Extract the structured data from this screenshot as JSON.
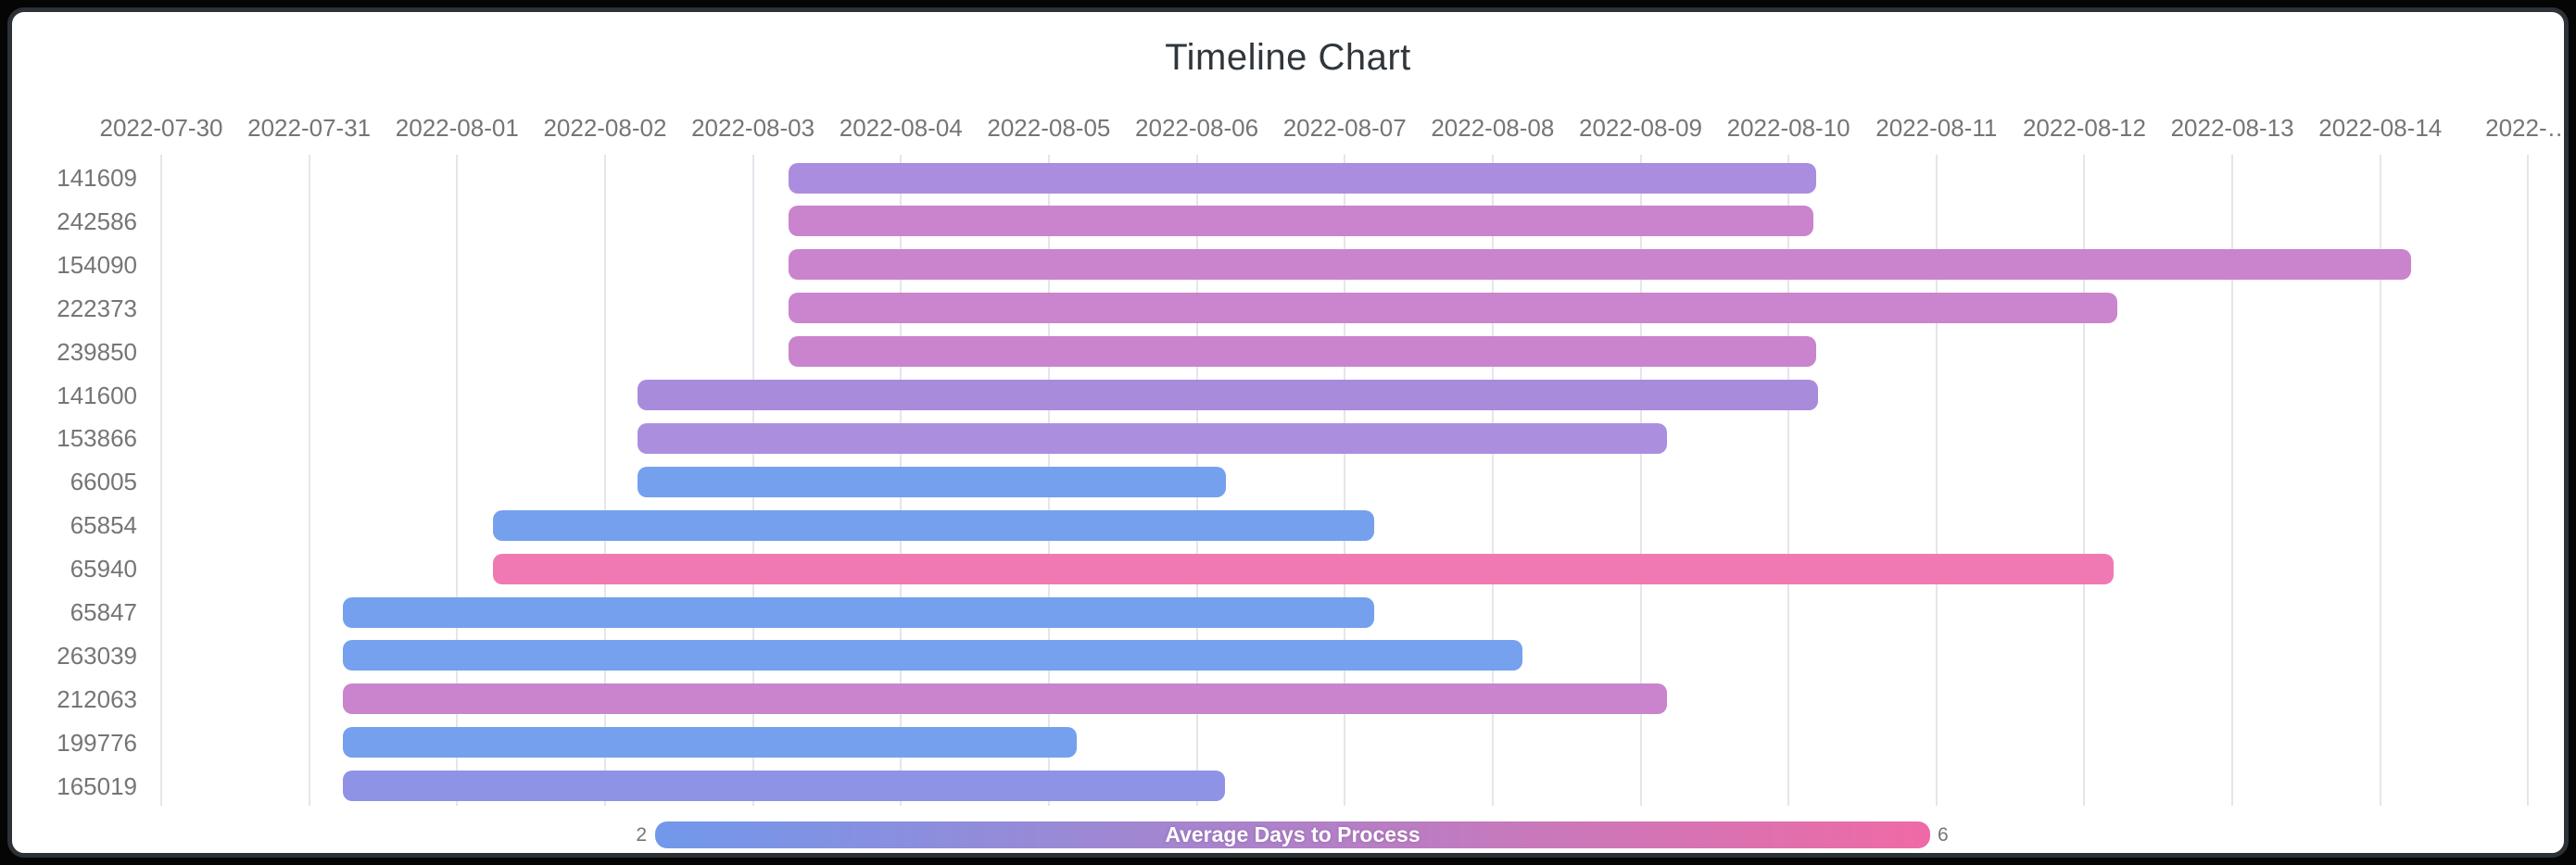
{
  "title": "Timeline Chart",
  "chart_data": {
    "type": "timeline",
    "title": "Timeline Chart",
    "x_axis": {
      "tick_labels": [
        "2022-07-30",
        "2022-07-31",
        "2022-08-01",
        "2022-08-02",
        "2022-08-03",
        "2022-08-04",
        "2022-08-05",
        "2022-08-06",
        "2022-08-07",
        "2022-08-08",
        "2022-08-09",
        "2022-08-10",
        "2022-08-11",
        "2022-08-12",
        "2022-08-13",
        "2022-08-14",
        "2022-…"
      ],
      "grid": true,
      "range_start": "2022-07-30",
      "range_end": "2022-08-15"
    },
    "rows": [
      {
        "id": "141609",
        "start": "2022-08-03",
        "end": "2022-08-10",
        "start_day_offset": 4.24,
        "end_day_offset": 11.19,
        "duration_days": 7,
        "color": "#ab8ddf",
        "avg_days_to_process_estimate": 3.5
      },
      {
        "id": "242586",
        "start": "2022-08-03",
        "end": "2022-08-10",
        "start_day_offset": 4.24,
        "end_day_offset": 11.17,
        "duration_days": 7,
        "color": "#ca83cd",
        "avg_days_to_process_estimate": 4.4
      },
      {
        "id": "154090",
        "start": "2022-08-03",
        "end": "2022-08-14",
        "start_day_offset": 4.24,
        "end_day_offset": 15.21,
        "duration_days": 11,
        "color": "#ca83cd",
        "avg_days_to_process_estimate": 4.4
      },
      {
        "id": "222373",
        "start": "2022-08-03",
        "end": "2022-08-12",
        "start_day_offset": 4.24,
        "end_day_offset": 13.22,
        "duration_days": 9,
        "color": "#cb84ce",
        "avg_days_to_process_estimate": 4.4
      },
      {
        "id": "239850",
        "start": "2022-08-03",
        "end": "2022-08-10",
        "start_day_offset": 4.24,
        "end_day_offset": 11.19,
        "duration_days": 7,
        "color": "#ca83cd",
        "avg_days_to_process_estimate": 4.4
      },
      {
        "id": "141600",
        "start": "2022-08-02",
        "end": "2022-08-10",
        "start_day_offset": 3.22,
        "end_day_offset": 11.2,
        "duration_days": 8,
        "color": "#a98bdc",
        "avg_days_to_process_estimate": 3.4
      },
      {
        "id": "153866",
        "start": "2022-08-02",
        "end": "2022-08-09",
        "start_day_offset": 3.22,
        "end_day_offset": 10.18,
        "duration_days": 7,
        "color": "#ac8edf",
        "avg_days_to_process_estimate": 3.5
      },
      {
        "id": "66005",
        "start": "2022-08-02",
        "end": "2022-08-06",
        "start_day_offset": 3.22,
        "end_day_offset": 7.2,
        "duration_days": 4,
        "color": "#74a0ee",
        "avg_days_to_process_estimate": 2.1
      },
      {
        "id": "65854",
        "start": "2022-08-01",
        "end": "2022-08-07",
        "start_day_offset": 2.24,
        "end_day_offset": 8.2,
        "duration_days": 6,
        "color": "#74a0ee",
        "avg_days_to_process_estimate": 2.1
      },
      {
        "id": "65940",
        "start": "2022-08-01",
        "end": "2022-08-12",
        "start_day_offset": 2.24,
        "end_day_offset": 13.2,
        "duration_days": 11,
        "color": "#f079b4",
        "avg_days_to_process_estimate": 5.8
      },
      {
        "id": "65847",
        "start": "2022-07-31",
        "end": "2022-08-07",
        "start_day_offset": 1.23,
        "end_day_offset": 8.2,
        "duration_days": 7,
        "color": "#74a0ee",
        "avg_days_to_process_estimate": 2.1
      },
      {
        "id": "263039",
        "start": "2022-07-31",
        "end": "2022-08-08",
        "start_day_offset": 1.23,
        "end_day_offset": 9.2,
        "duration_days": 8,
        "color": "#75a1ee",
        "avg_days_to_process_estimate": 2.1
      },
      {
        "id": "212063",
        "start": "2022-07-31",
        "end": "2022-08-09",
        "start_day_offset": 1.23,
        "end_day_offset": 10.18,
        "duration_days": 9,
        "color": "#ca83cd",
        "avg_days_to_process_estimate": 4.4
      },
      {
        "id": "199776",
        "start": "2022-07-31",
        "end": "2022-08-05",
        "start_day_offset": 1.23,
        "end_day_offset": 6.19,
        "duration_days": 5,
        "color": "#74a0ee",
        "avg_days_to_process_estimate": 2.1
      },
      {
        "id": "165019",
        "start": "2022-07-31",
        "end": "2022-08-06",
        "start_day_offset": 1.23,
        "end_day_offset": 7.19,
        "duration_days": 6,
        "color": "#8e93e6",
        "avg_days_to_process_estimate": 2.8
      }
    ],
    "legend": {
      "label": "Average Days to Process",
      "min": "2",
      "max": "6",
      "min_color": "#7198ec",
      "max_color": "#ef6aa5",
      "position": "bottom"
    },
    "colors": {
      "panel_background": "#ffffff",
      "frame_border": "#2c3137",
      "outer_background": "#050505",
      "gridline": "#e5e5ec",
      "axis_text": "#757575",
      "title_text": "#2f363c"
    }
  }
}
